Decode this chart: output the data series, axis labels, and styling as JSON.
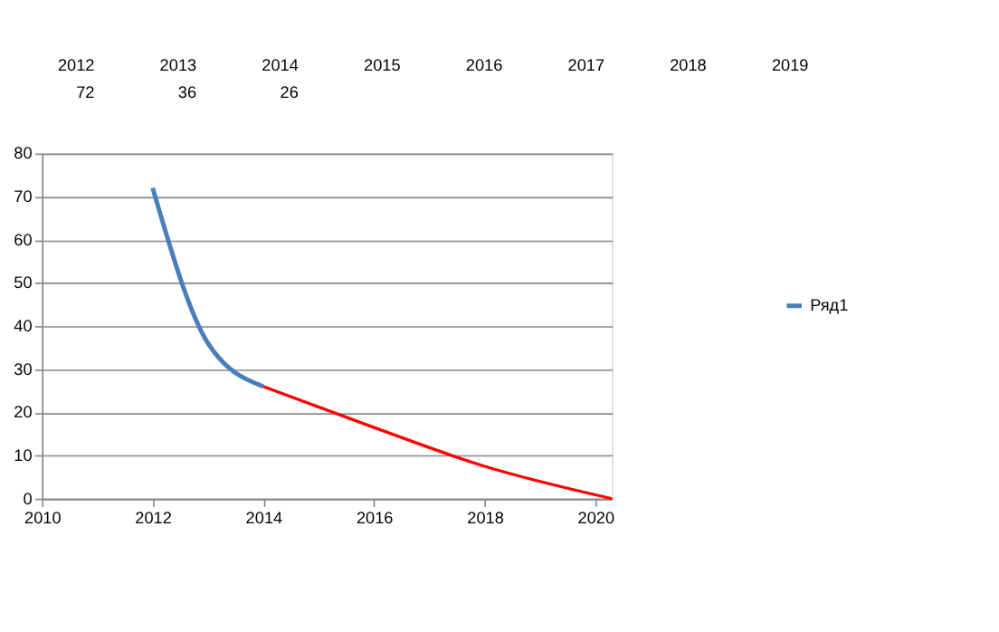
{
  "chart_data": {
    "type": "line",
    "annotations": [
      "2012",
      "2013",
      "2014",
      "2015",
      "2016",
      "2017",
      "2018",
      "2019",
      "72",
      "36",
      "26"
    ],
    "series": [
      {
        "name": "Ряд1",
        "color": "#4a7ebb",
        "x": [
          2012,
          2013,
          2014
        ],
        "values": [
          72,
          36,
          26
        ]
      },
      {
        "type": "line",
        "color": "#ff0000",
        "x": [
          2014,
          2016,
          2018,
          2020.3
        ],
        "values": [
          26,
          16.5,
          7.5,
          0
        ]
      }
    ],
    "xlim": [
      2010,
      2020.3
    ],
    "xticks": [
      2010,
      2012,
      2014,
      2016,
      2018,
      2020
    ],
    "ylim": [
      0,
      80
    ],
    "yticks": [
      0,
      10,
      20,
      30,
      40,
      50,
      60,
      70,
      80
    ],
    "grid": "y",
    "legend": "right",
    "marker": "none",
    "line_style": "solid"
  }
}
